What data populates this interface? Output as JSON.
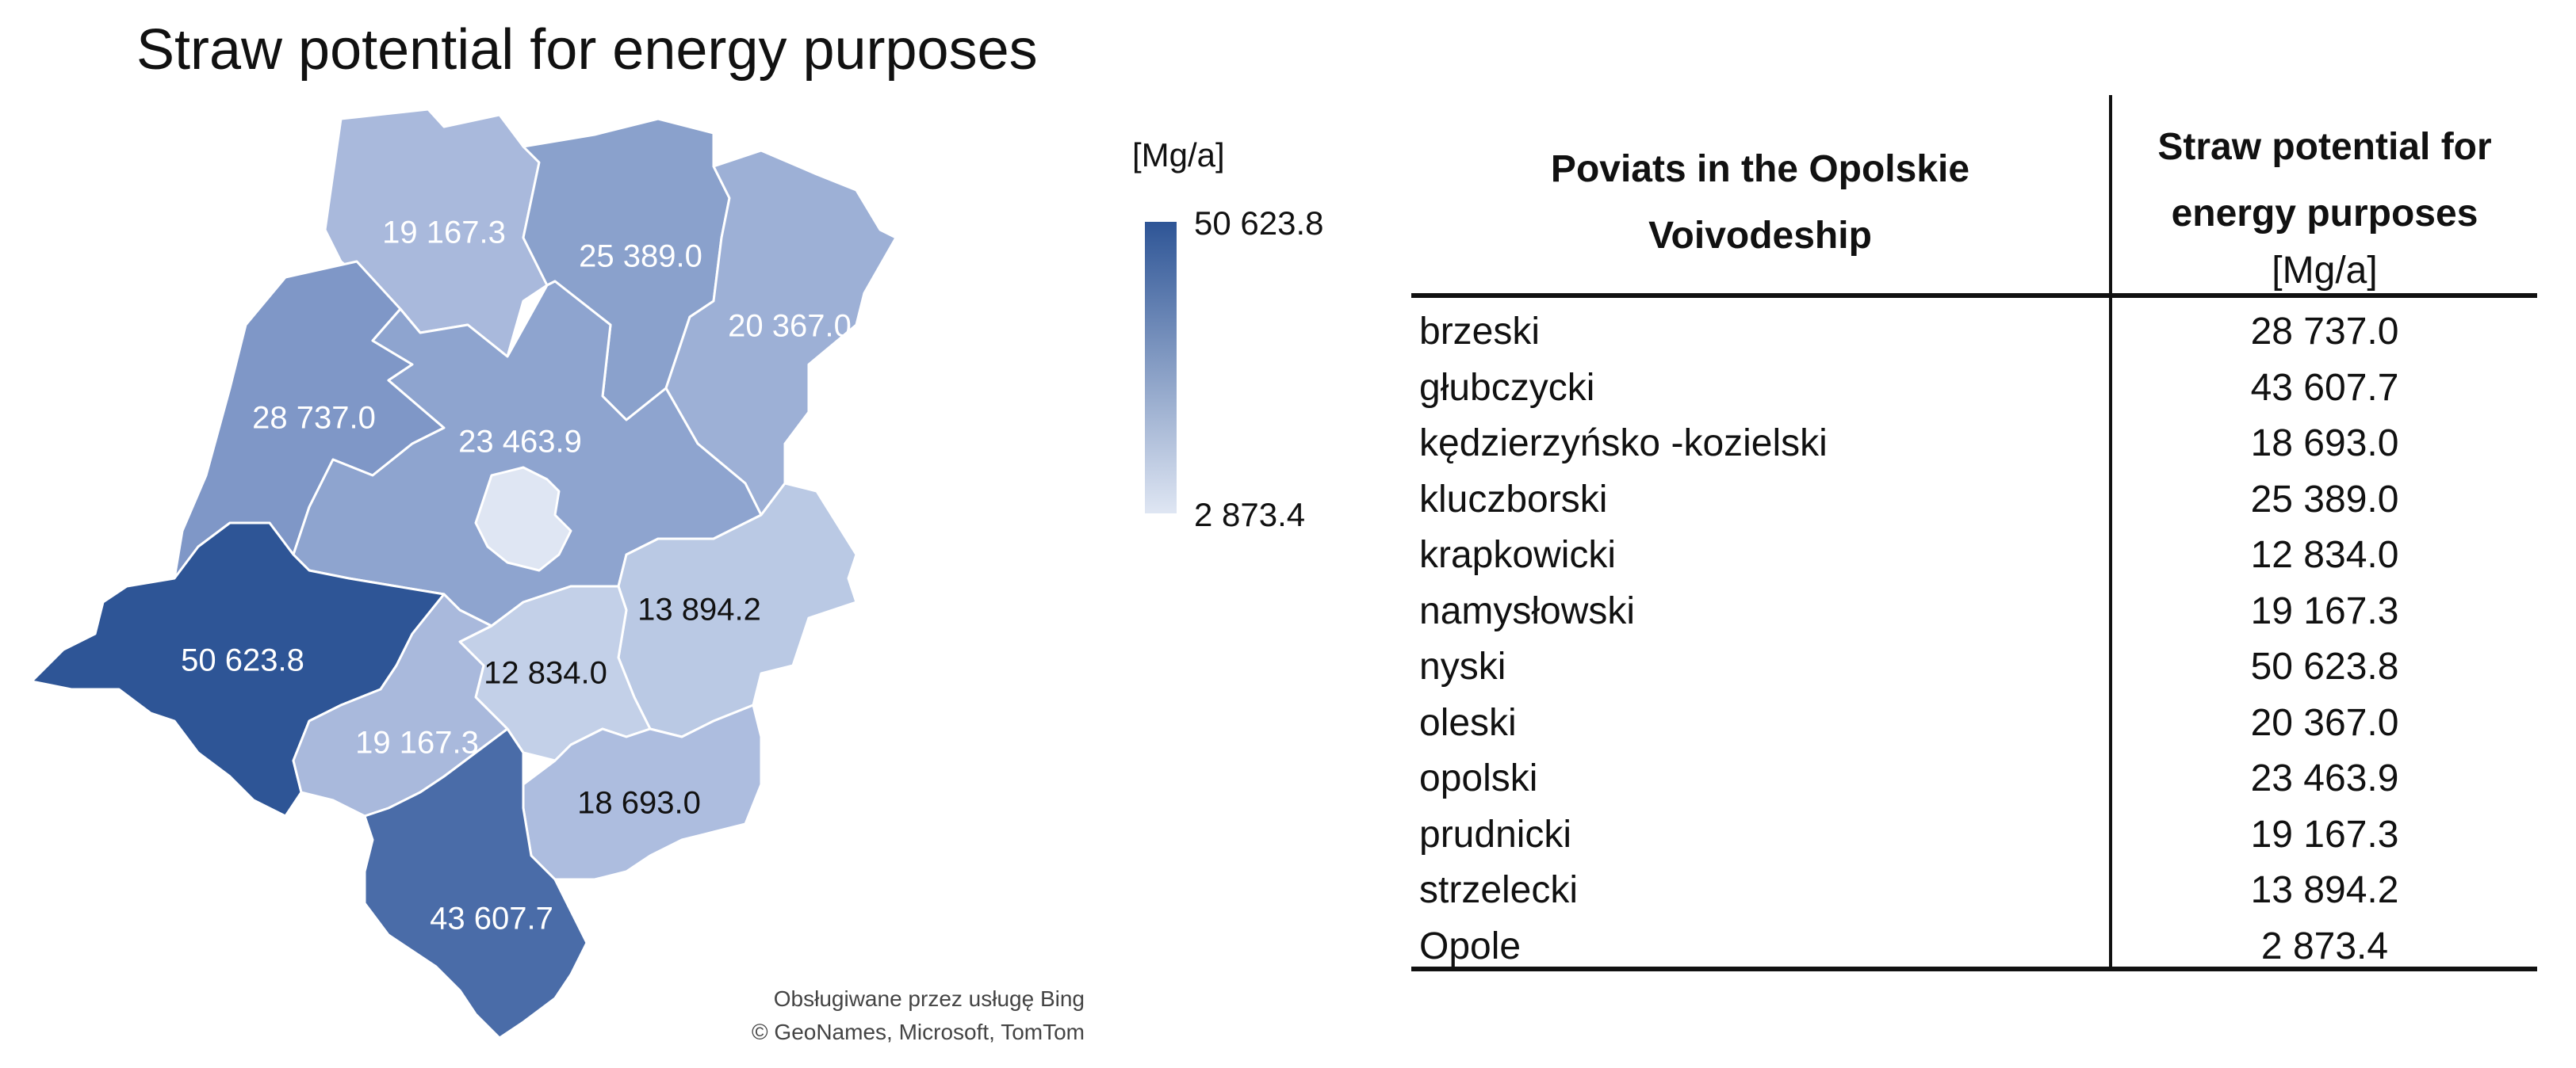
{
  "map": {
    "title": "Straw potential for energy purposes",
    "legend": {
      "unit": "[Mg/a]",
      "max_label": "50 623.8",
      "min_label": "2 873.4",
      "max_color": "#2e5596",
      "min_color": "#dfe6f3"
    },
    "credits": {
      "line1": "Obsługiwane przez usługę Bing",
      "line2": "© GeoNames, Microsoft, TomTom"
    },
    "regions": [
      {
        "name": "namysłowski",
        "label": "19 167.3",
        "value": 19167.3,
        "color": "#a9b9dc",
        "label_color": "#ffffff"
      },
      {
        "name": "kluczborski",
        "label": "25 389.0",
        "value": 25389.0,
        "color": "#8aa1cc",
        "label_color": "#ffffff"
      },
      {
        "name": "oleski",
        "label": "20 367.0",
        "value": 20367.0,
        "color": "#9db0d6",
        "label_color": "#ffffff"
      },
      {
        "name": "brzeski",
        "label": "28 737.0",
        "value": 28737.0,
        "color": "#7f97c7",
        "label_color": "#ffffff"
      },
      {
        "name": "opolski",
        "label": "23 463.9",
        "value": 23463.9,
        "color": "#8ea4cf",
        "label_color": "#ffffff"
      },
      {
        "name": "Opole",
        "label": "",
        "value": 2873.4,
        "color": "#dfe6f3",
        "label_color": "#111111"
      },
      {
        "name": "strzelecki",
        "label": "13 894.2",
        "value": 13894.2,
        "color": "#bac9e4",
        "label_color": "#111111"
      },
      {
        "name": "nyski",
        "label": "50 623.8",
        "value": 50623.8,
        "color": "#2e5596",
        "label_color": "#ffffff"
      },
      {
        "name": "krapkowicki",
        "label": "12 834.0",
        "value": 12834.0,
        "color": "#c3d0e8",
        "label_color": "#111111"
      },
      {
        "name": "prudnicki",
        "label": "19 167.3",
        "value": 19167.3,
        "color": "#a9b9dc",
        "label_color": "#ffffff"
      },
      {
        "name": "kędzierzyńsko -kozielski",
        "label": "18 693.0",
        "value": 18693.0,
        "color": "#adbddf",
        "label_color": "#111111"
      },
      {
        "name": "głubczycki",
        "label": "43 607.7",
        "value": 43607.7,
        "color": "#4a6ca8",
        "label_color": "#ffffff"
      }
    ]
  },
  "table": {
    "header_poviat_line1": "Poviats in the Opolskie",
    "header_poviat_line2": "Voivodeship",
    "header_potential_line1": "Straw potential for",
    "header_potential_line2": "energy purposes",
    "header_potential_unit": "[Mg/a]",
    "rows": [
      {
        "poviat": "brzeski",
        "value": "28 737.0"
      },
      {
        "poviat": "głubczycki",
        "value": "43 607.7"
      },
      {
        "poviat": "kędzierzyńsko -kozielski",
        "value": "18 693.0"
      },
      {
        "poviat": "kluczborski",
        "value": "25 389.0"
      },
      {
        "poviat": "krapkowicki",
        "value": "12 834.0"
      },
      {
        "poviat": "namysłowski",
        "value": "19 167.3"
      },
      {
        "poviat": "nyski",
        "value": "50 623.8"
      },
      {
        "poviat": "oleski",
        "value": "20 367.0"
      },
      {
        "poviat": "opolski",
        "value": "23 463.9"
      },
      {
        "poviat": "prudnicki",
        "value": "19 167.3"
      },
      {
        "poviat": "strzelecki",
        "value": "13 894.2"
      },
      {
        "poviat": "Opole",
        "value": "2 873.4"
      }
    ]
  }
}
